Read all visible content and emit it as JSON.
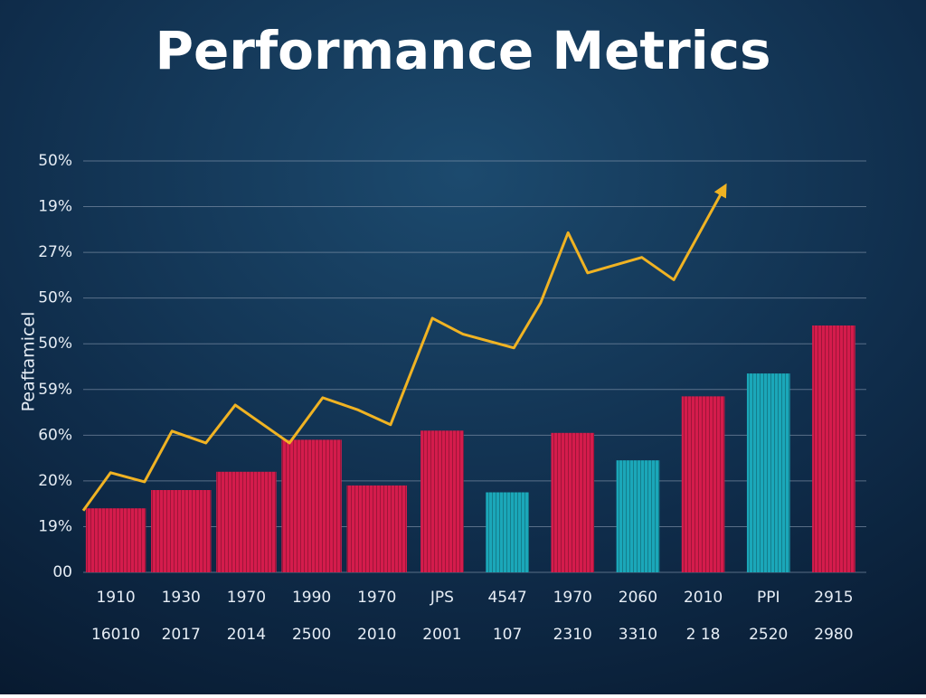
{
  "chart_data": {
    "type": "bar",
    "title": "Performance Metrics",
    "y_label": "Peaftamicel",
    "categories": [
      "1910",
      "1930",
      "1970",
      "1990",
      "1970",
      "JPS",
      "4547",
      "1970",
      "2060",
      "2010",
      "PPI",
      "2915"
    ],
    "category_sublabels": [
      "16010",
      "2017",
      "2014",
      "2500",
      "2010",
      "2001",
      "107",
      "2310",
      "3310",
      "2 18",
      "2520",
      "2980"
    ],
    "xlim": [
      0,
      12
    ],
    "ylim": [
      0,
      9
    ],
    "yticks": [
      {
        "value": 0,
        "label": "00"
      },
      {
        "value": 1,
        "label": "19%"
      },
      {
        "value": 2,
        "label": "20%"
      },
      {
        "value": 3,
        "label": "60%"
      },
      {
        "value": 4,
        "label": "59%"
      },
      {
        "value": 5,
        "label": "50%"
      },
      {
        "value": 6,
        "label": "50%"
      },
      {
        "value": 7,
        "label": "27%"
      },
      {
        "value": 8,
        "label": "19%"
      },
      {
        "value": 9,
        "label": "50%"
      }
    ],
    "grid": true,
    "series": [
      {
        "type": "bar",
        "values": [
          1.4,
          1.8,
          2.2,
          2.9,
          1.9,
          3.1,
          1.75,
          3.05,
          2.45,
          3.85,
          4.35,
          5.4
        ],
        "colors": [
          "#d41c4c",
          "#d41c4c",
          "#d41c4c",
          "#d41c4c",
          "#d41c4c",
          "#d41c4c",
          "#1ba7b9",
          "#d41c4c",
          "#1ba7b9",
          "#d41c4c",
          "#1ba7b9",
          "#d41c4c"
        ]
      },
      {
        "type": "line",
        "color": "#f0b323",
        "x": [
          0,
          0.42,
          0.94,
          1.36,
          1.88,
          2.33,
          3.16,
          3.67,
          4.2,
          4.71,
          5.35,
          5.82,
          6.6,
          7.01,
          7.43,
          7.73,
          8.56,
          9.05,
          9.81
        ],
        "values": [
          1.35,
          2.18,
          1.98,
          3.09,
          2.83,
          3.66,
          2.83,
          3.82,
          3.56,
          3.23,
          5.56,
          5.21,
          4.91,
          5.9,
          7.43,
          6.55,
          6.89,
          6.4,
          8.38
        ]
      }
    ]
  }
}
